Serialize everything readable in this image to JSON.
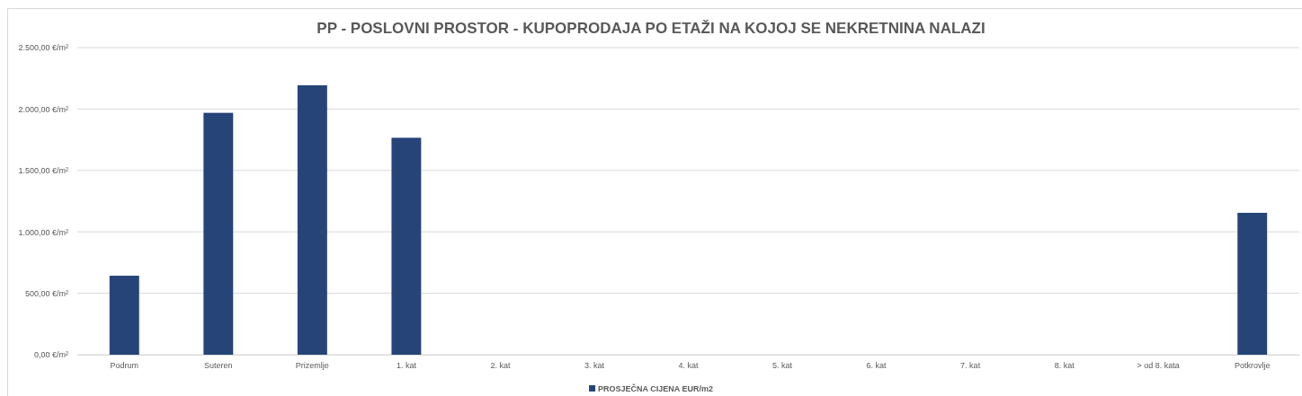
{
  "chart_data": {
    "type": "bar",
    "title": "PP - POSLOVNI PROSTOR - KUPOPRODAJA PO ETAŽI NA KOJOJ SE NEKRETNINA NALAZI",
    "categories": [
      "Podrum",
      "Suteren",
      "Prizemlje",
      "1. kat",
      "2. kat",
      "3. kat",
      "4. kat",
      "5. kat",
      "6. kat",
      "7. kat",
      "8. kat",
      "> od 8. kata",
      "Potkrovlje"
    ],
    "series": [
      {
        "name": "PROSJEČNA CIJENA EUR/m2",
        "color": "#264478",
        "values": [
          643,
          1969,
          2193,
          1766,
          null,
          null,
          null,
          null,
          null,
          null,
          null,
          null,
          1155
        ]
      }
    ],
    "ylim": [
      0,
      2500
    ],
    "yticks": [
      {
        "value": 0,
        "label": "0,00 €/m²"
      },
      {
        "value": 500,
        "label": "500,00 €/m²"
      },
      {
        "value": 1000,
        "label": "1.000,00 €/m²"
      },
      {
        "value": 1500,
        "label": "1.500,00 €/m²"
      },
      {
        "value": 2000,
        "label": "2.000,00 €/m²"
      },
      {
        "value": 2500,
        "label": "2.500,00 €/m²"
      }
    ],
    "grid": "y",
    "legend": "bottom"
  }
}
